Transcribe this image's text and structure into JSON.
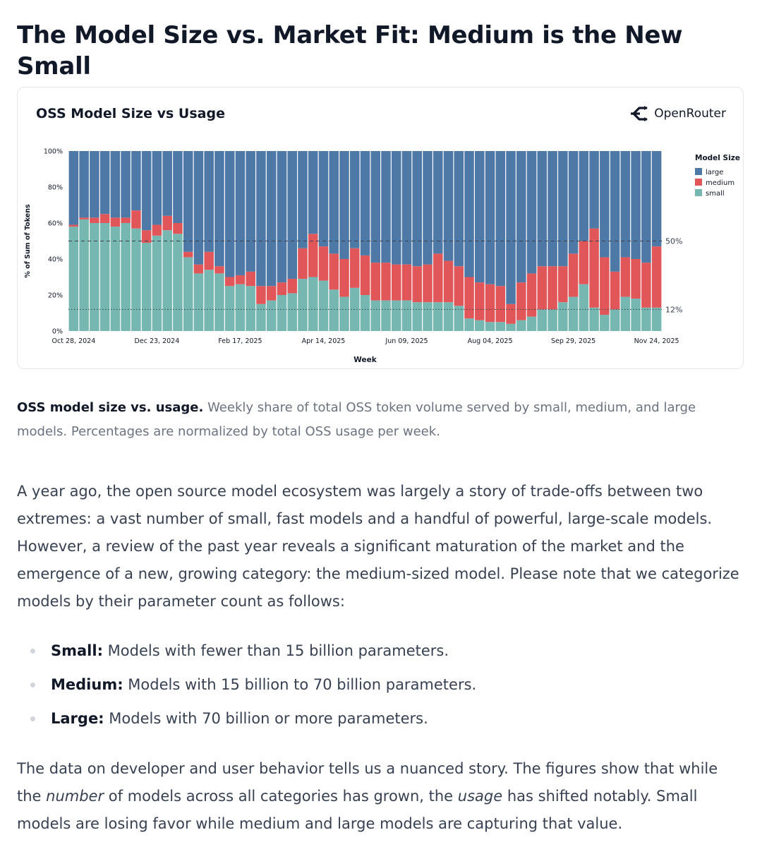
{
  "page": {
    "title": "The Model Size vs. Market Fit: Medium is the New Small"
  },
  "chart_card": {
    "brand": "OpenRouter"
  },
  "colors": {
    "large": "#4e79a7",
    "medium": "#e15759",
    "small": "#76b7b2"
  },
  "chart_data": {
    "type": "bar",
    "stacked": true,
    "normalized": true,
    "title": "OSS Model Size vs Usage",
    "xlabel": "Week",
    "ylabel": "% of Sum of Tokens",
    "ylim": [
      0,
      100
    ],
    "yticks": [
      "0%",
      "20%",
      "40%",
      "60%",
      "80%",
      "100%"
    ],
    "xtick_labels": [
      "Oct 28, 2024",
      "Dec 23, 2024",
      "Feb 17, 2025",
      "Apr 14, 2025",
      "Jun 09, 2025",
      "Aug 04, 2025",
      "Sep 29, 2025",
      "Nov 24, 2025"
    ],
    "xtick_positions": [
      0,
      8,
      16,
      24,
      32,
      40,
      48,
      56
    ],
    "legend": {
      "title": "Model Size",
      "position": "right",
      "entries": [
        "large",
        "medium",
        "small"
      ]
    },
    "reference_lines": [
      {
        "value": 50,
        "label": "50%",
        "style": "dashed"
      },
      {
        "value": 12,
        "label": "12%",
        "style": "dotted"
      }
    ],
    "weeks": 57,
    "series": [
      {
        "name": "small",
        "values": [
          58,
          62,
          60,
          60,
          58,
          60,
          57,
          49,
          53,
          56,
          54,
          41,
          32,
          34,
          32,
          25,
          26,
          25,
          15,
          17,
          20,
          21,
          29,
          30,
          28,
          23,
          19,
          24,
          20,
          17,
          17,
          17,
          17,
          16,
          16,
          16,
          16,
          14,
          7,
          6,
          5,
          5,
          4,
          6,
          8,
          12,
          12,
          16,
          19,
          26,
          13,
          9,
          12,
          19,
          18,
          13,
          13
        ]
      },
      {
        "name": "medium",
        "values": [
          1,
          1,
          3,
          5,
          5,
          3,
          10,
          7,
          6,
          8,
          6,
          3,
          5,
          10,
          4,
          5,
          5,
          8,
          10,
          8,
          7,
          8,
          17,
          24,
          19,
          20,
          21,
          22,
          22,
          21,
          21,
          20,
          20,
          20,
          21,
          27,
          23,
          22,
          23,
          21,
          21,
          20,
          11,
          21,
          24,
          24,
          24,
          20,
          24,
          24,
          44,
          32,
          21,
          22,
          22,
          25,
          34
        ]
      },
      {
        "name": "large",
        "values": [
          41,
          37,
          37,
          35,
          37,
          37,
          33,
          44,
          41,
          36,
          40,
          56,
          63,
          56,
          64,
          70,
          69,
          67,
          75,
          75,
          73,
          71,
          54,
          46,
          53,
          57,
          60,
          54,
          58,
          62,
          62,
          63,
          63,
          64,
          63,
          57,
          61,
          64,
          70,
          73,
          74,
          75,
          85,
          73,
          68,
          64,
          64,
          64,
          57,
          50,
          43,
          59,
          67,
          59,
          60,
          62,
          53
        ]
      }
    ]
  },
  "caption": {
    "bold": "OSS model size vs. usage.",
    "text": " Weekly share of total OSS token volume served by small, medium, and large models. Percentages are normalized by total OSS usage per week."
  },
  "paragraph1": "A year ago, the open source model ecosystem was largely a story of trade-offs between two extremes: a vast number of small, fast models and a handful of powerful, large-scale models. However, a review of the past year reveals a significant maturation of the market and the emergence of a new, growing category: the medium-sized model. Please note that we categorize models by their parameter count as follows:",
  "bullets": [
    {
      "label": "Small:",
      "text": " Models with fewer than 15 billion parameters."
    },
    {
      "label": "Medium:",
      "text": " Models with 15 billion to 70 billion parameters."
    },
    {
      "label": "Large:",
      "text": " Models with 70 billion or more parameters."
    }
  ],
  "paragraph2": {
    "a": "The data on developer and user behavior tells us a nuanced story. The figures show that while the ",
    "em1": "number",
    "b": " of models across all categories has grown, the ",
    "em2": "usage",
    "c": " has shifted notably. Small models are losing favor while medium and large models are capturing that value."
  }
}
